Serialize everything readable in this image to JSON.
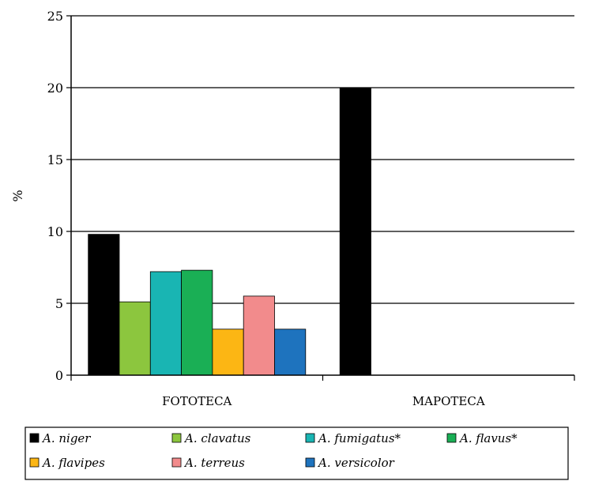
{
  "chart_data": {
    "type": "bar",
    "title": "",
    "xlabel": "",
    "ylabel": "%",
    "ylim": [
      0,
      25
    ],
    "yticks": [
      0,
      5,
      10,
      15,
      20,
      25
    ],
    "grid": true,
    "legend_position": "bottom",
    "categories": [
      "FOTOTECA",
      "MAPOTECA"
    ],
    "series": [
      {
        "name": "A. niger",
        "color": "#000000",
        "values": [
          9.8,
          20
        ]
      },
      {
        "name": "A. clavatus",
        "color": "#8cc63e",
        "values": [
          5.1,
          0
        ]
      },
      {
        "name": "A. fumigatus*",
        "color": "#19b5b3",
        "values": [
          7.2,
          0
        ]
      },
      {
        "name": "A. flavus*",
        "color": "#1aaf55",
        "values": [
          7.3,
          0
        ]
      },
      {
        "name": "A. flavipes",
        "color": "#fcb614",
        "values": [
          3.2,
          0
        ]
      },
      {
        "name": "A. terreus",
        "color": "#f28b8c",
        "values": [
          5.5,
          0
        ]
      },
      {
        "name": "A. versicolor",
        "color": "#1e73be",
        "values": [
          3.2,
          0
        ]
      }
    ]
  }
}
